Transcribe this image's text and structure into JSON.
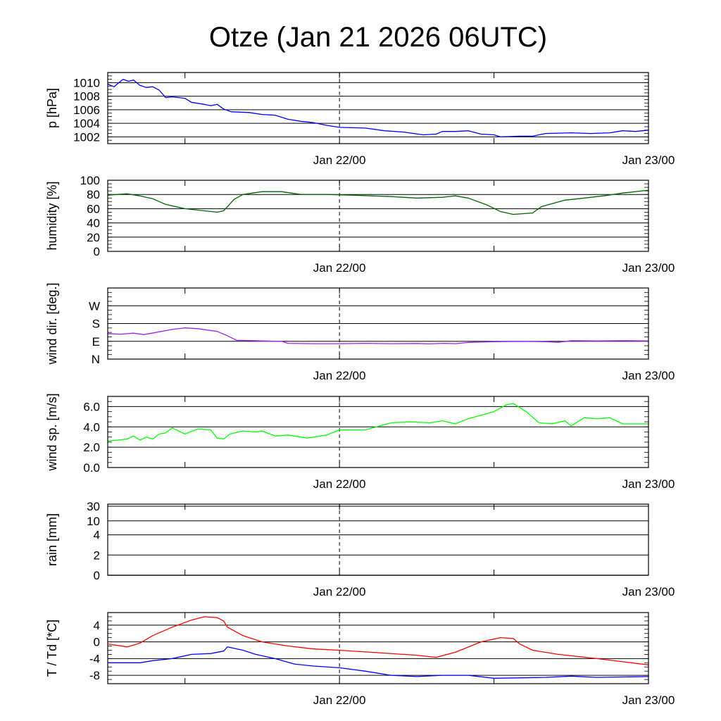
{
  "chart_data": {
    "type": "line",
    "title": "Otze (Jan 21 2026 06UTC)",
    "x_unit": "hours since Jan 21 06UTC",
    "xlim": [
      0,
      42
    ],
    "x_major_ticks": [
      {
        "x": 18,
        "label": "Jan 22/00"
      },
      {
        "x": 42,
        "label": "Jan 23/00"
      }
    ],
    "x_minor_ticks": [
      6,
      18,
      30
    ],
    "vertical_marker": 18,
    "grid": "horizontal",
    "panels": [
      {
        "id": "pressure",
        "ylabel": "p [hPa]",
        "ylim": [
          1001,
          1011.5
        ],
        "yticks": [
          {
            "v": 1002,
            "label": "1002"
          },
          {
            "v": 1004,
            "label": "1004"
          },
          {
            "v": 1006,
            "label": "1006"
          },
          {
            "v": 1008,
            "label": "1008"
          },
          {
            "v": 1010,
            "label": "1010"
          }
        ],
        "series": [
          {
            "name": "pressure",
            "color": "#0000ff",
            "points": [
              [
                0,
                1009.8
              ],
              [
                0.5,
                1009.4
              ],
              [
                0.8,
                1009.9
              ],
              [
                1.2,
                1010.5
              ],
              [
                1.6,
                1010.2
              ],
              [
                2,
                1010.4
              ],
              [
                2.5,
                1009.6
              ],
              [
                3,
                1009.3
              ],
              [
                3.5,
                1009.4
              ],
              [
                4,
                1008.9
              ],
              [
                4.5,
                1007.8
              ],
              [
                5,
                1007.9
              ],
              [
                6,
                1007.7
              ],
              [
                6.5,
                1007.1
              ],
              [
                7.5,
                1006.8
              ],
              [
                8,
                1006.6
              ],
              [
                8.5,
                1006.8
              ],
              [
                9,
                1006.1
              ],
              [
                9.6,
                1005.7
              ],
              [
                11,
                1005.6
              ],
              [
                12,
                1005.3
              ],
              [
                13,
                1005.2
              ],
              [
                14,
                1004.6
              ],
              [
                15,
                1004.3
              ],
              [
                16,
                1004.1
              ],
              [
                17,
                1003.7
              ],
              [
                18,
                1003.4
              ],
              [
                20,
                1003.3
              ],
              [
                21.5,
                1002.9
              ],
              [
                23,
                1002.7
              ],
              [
                24.5,
                1002.3
              ],
              [
                25.5,
                1002.4
              ],
              [
                26,
                1002.8
              ],
              [
                27,
                1002.8
              ],
              [
                28,
                1002.9
              ],
              [
                29,
                1002.4
              ],
              [
                30,
                1002.3
              ],
              [
                30.5,
                1002.0
              ],
              [
                32,
                1002.1
              ],
              [
                33,
                1002.1
              ],
              [
                34,
                1002.5
              ],
              [
                36,
                1002.6
              ],
              [
                37.5,
                1002.5
              ],
              [
                39,
                1002.6
              ],
              [
                40,
                1002.9
              ],
              [
                41,
                1002.8
              ],
              [
                42,
                1003.0
              ]
            ]
          }
        ]
      },
      {
        "id": "humidity",
        "ylabel": "humidity [%]",
        "ylim": [
          0,
          100
        ],
        "yticks": [
          {
            "v": 0,
            "label": "0"
          },
          {
            "v": 20,
            "label": "20"
          },
          {
            "v": 40,
            "label": "40"
          },
          {
            "v": 60,
            "label": "60"
          },
          {
            "v": 80,
            "label": "80"
          },
          {
            "v": 100,
            "label": "100"
          }
        ],
        "series": [
          {
            "name": "humidity",
            "color": "#006400",
            "points": [
              [
                0,
                79
              ],
              [
                1.5,
                81
              ],
              [
                2.5,
                78
              ],
              [
                3.5,
                74
              ],
              [
                4.5,
                66
              ],
              [
                6,
                60
              ],
              [
                7.5,
                57
              ],
              [
                8.5,
                55
              ],
              [
                9,
                57
              ],
              [
                9.3,
                63
              ],
              [
                9.8,
                73
              ],
              [
                10.5,
                80
              ],
              [
                12,
                84
              ],
              [
                13.5,
                84
              ],
              [
                15,
                80
              ],
              [
                17,
                80
              ],
              [
                19,
                79
              ],
              [
                22,
                77
              ],
              [
                24,
                75
              ],
              [
                26,
                76
              ],
              [
                27,
                78
              ],
              [
                28,
                75
              ],
              [
                29.5,
                65
              ],
              [
                30.5,
                56
              ],
              [
                31.5,
                52
              ],
              [
                33,
                54
              ],
              [
                33.7,
                63
              ],
              [
                35.5,
                72
              ],
              [
                37,
                75
              ],
              [
                38.5,
                78
              ],
              [
                40,
                82
              ],
              [
                42,
                86
              ]
            ]
          }
        ]
      },
      {
        "id": "wind_direction",
        "ylabel": "wind dir. [deg.]",
        "ylim": [
          0,
          360
        ],
        "yticks": [
          {
            "v": 0,
            "label": "N"
          },
          {
            "v": 90,
            "label": "E"
          },
          {
            "v": 180,
            "label": "S"
          },
          {
            "v": 270,
            "label": "W"
          }
        ],
        "series": [
          {
            "name": "wind direction",
            "color": "#a020f0",
            "points": [
              [
                0,
                129
              ],
              [
                1,
                126
              ],
              [
                2,
                131
              ],
              [
                2.8,
                124
              ],
              [
                4,
                138
              ],
              [
                5,
                150
              ],
              [
                6,
                158
              ],
              [
                7,
                154
              ],
              [
                8.5,
                140
              ],
              [
                9.3,
                118
              ],
              [
                10,
                95
              ],
              [
                12,
                92
              ],
              [
                13.5,
                90
              ],
              [
                14,
                80
              ],
              [
                16,
                78
              ],
              [
                18,
                78
              ],
              [
                20,
                80
              ],
              [
                22,
                78
              ],
              [
                24,
                79
              ],
              [
                25,
                77
              ],
              [
                26,
                80
              ],
              [
                27,
                78
              ],
              [
                28,
                84
              ],
              [
                30,
                88
              ],
              [
                32,
                90
              ],
              [
                34,
                88
              ],
              [
                35,
                85
              ],
              [
                36,
                93
              ],
              [
                38,
                92
              ],
              [
                40,
                93
              ],
              [
                42,
                92
              ]
            ]
          }
        ]
      },
      {
        "id": "wind_speed",
        "ylabel": "wind sp. [m/s]",
        "ylim": [
          0,
          7
        ],
        "yticks": [
          {
            "v": 0,
            "label": "0.0"
          },
          {
            "v": 2,
            "label": "2.0"
          },
          {
            "v": 4,
            "label": "4.0"
          },
          {
            "v": 6,
            "label": "6.0"
          }
        ],
        "series": [
          {
            "name": "wind speed",
            "color": "#00ff00",
            "points": [
              [
                0,
                2.6
              ],
              [
                1.5,
                2.8
              ],
              [
                2,
                3.1
              ],
              [
                2.5,
                2.7
              ],
              [
                3,
                3.0
              ],
              [
                3.5,
                2.8
              ],
              [
                4,
                3.3
              ],
              [
                4.5,
                3.4
              ],
              [
                5,
                3.9
              ],
              [
                6,
                3.3
              ],
              [
                7,
                3.8
              ],
              [
                8,
                3.7
              ],
              [
                8.5,
                2.9
              ],
              [
                9,
                2.8
              ],
              [
                9.5,
                3.3
              ],
              [
                10.5,
                3.6
              ],
              [
                11.5,
                3.5
              ],
              [
                12,
                3.6
              ],
              [
                13,
                3.1
              ],
              [
                14,
                3.2
              ],
              [
                15.5,
                2.9
              ],
              [
                17,
                3.2
              ],
              [
                18,
                3.7
              ],
              [
                20,
                3.7
              ],
              [
                22,
                4.4
              ],
              [
                23.5,
                4.5
              ],
              [
                25,
                4.4
              ],
              [
                26,
                4.6
              ],
              [
                27,
                4.3
              ],
              [
                28,
                4.8
              ],
              [
                30,
                5.5
              ],
              [
                31,
                6.2
              ],
              [
                31.5,
                6.3
              ],
              [
                32.5,
                5.5
              ],
              [
                33.5,
                4.4
              ],
              [
                34.5,
                4.3
              ],
              [
                35.5,
                4.6
              ],
              [
                36,
                4.1
              ],
              [
                37,
                4.9
              ],
              [
                38,
                4.8
              ],
              [
                39,
                4.9
              ],
              [
                40,
                4.3
              ],
              [
                42,
                4.3
              ]
            ]
          }
        ]
      },
      {
        "id": "rain",
        "ylabel": "rain [mm]",
        "ylim": [
          0,
          30
        ],
        "scale": "nonlinear",
        "yticks": [
          {
            "v": 0,
            "label": "0"
          },
          {
            "v": 2,
            "label": "2"
          },
          {
            "v": 4,
            "label": "4"
          },
          {
            "v": 10,
            "label": "10"
          },
          {
            "v": 30,
            "label": "30"
          }
        ],
        "series": [
          {
            "name": "rain",
            "color": "#000080",
            "points": [
              [
                0,
                0
              ],
              [
                42,
                0
              ]
            ]
          }
        ]
      },
      {
        "id": "temperature",
        "ylabel": "T / Td [*C]",
        "ylim": [
          -10,
          7
        ],
        "yticks": [
          {
            "v": -8,
            "label": "-8"
          },
          {
            "v": -4,
            "label": "-4"
          },
          {
            "v": 0,
            "label": "0"
          },
          {
            "v": 4,
            "label": "4"
          }
        ],
        "series": [
          {
            "name": "T",
            "color": "#ff0000",
            "points": [
              [
                0,
                -0.5
              ],
              [
                1.5,
                -1.2
              ],
              [
                2,
                -0.8
              ],
              [
                2.5,
                -0.3
              ],
              [
                3.5,
                1.5
              ],
              [
                5,
                3.5
              ],
              [
                6.5,
                5.2
              ],
              [
                7.5,
                6
              ],
              [
                8.5,
                5.8
              ],
              [
                9,
                5
              ],
              [
                9.3,
                3.5
              ],
              [
                10.5,
                1.5
              ],
              [
                12,
                0
              ],
              [
                14,
                -1
              ],
              [
                16,
                -1.7
              ],
              [
                18,
                -2
              ],
              [
                21,
                -2.6
              ],
              [
                24,
                -3.2
              ],
              [
                25.5,
                -3.7
              ],
              [
                27,
                -2.5
              ],
              [
                29,
                0
              ],
              [
                30.5,
                1
              ],
              [
                31.5,
                0.8
              ],
              [
                32,
                -0.5
              ],
              [
                33,
                -2
              ],
              [
                35,
                -3
              ],
              [
                38,
                -4
              ],
              [
                42,
                -5.5
              ]
            ]
          },
          {
            "name": "Td",
            "color": "#0000ff",
            "points": [
              [
                0,
                -5
              ],
              [
                2.5,
                -5
              ],
              [
                3.5,
                -4.5
              ],
              [
                5,
                -4
              ],
              [
                6.5,
                -3
              ],
              [
                8,
                -2.8
              ],
              [
                9,
                -2.2
              ],
              [
                9.3,
                -1.2
              ],
              [
                10.5,
                -2
              ],
              [
                11.5,
                -3
              ],
              [
                13,
                -4
              ],
              [
                14.5,
                -5.3
              ],
              [
                16,
                -5.8
              ],
              [
                18,
                -6.2
              ],
              [
                20,
                -7
              ],
              [
                22,
                -8
              ],
              [
                24,
                -8.3
              ],
              [
                26,
                -8
              ],
              [
                28,
                -8
              ],
              [
                30,
                -8.7
              ],
              [
                32,
                -8.6
              ],
              [
                34,
                -8.5
              ],
              [
                36,
                -8.2
              ],
              [
                38,
                -8.5
              ],
              [
                42,
                -8.3
              ]
            ]
          }
        ]
      }
    ]
  }
}
